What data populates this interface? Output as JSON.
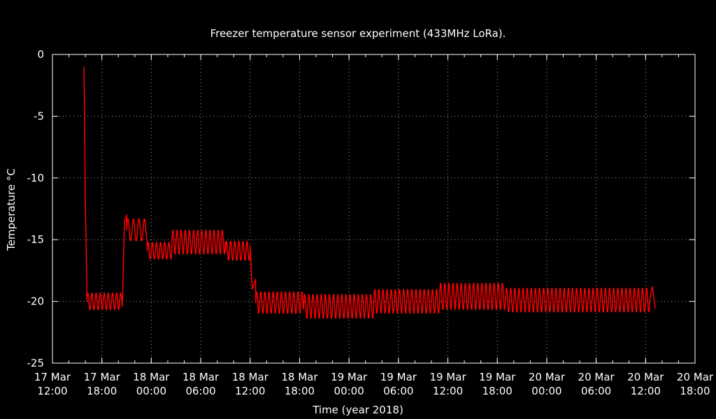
{
  "chart_data": {
    "type": "line",
    "title": "Freezer temperature sensor experiment (433MHz LoRa).",
    "xlabel": "Time (year 2018)",
    "ylabel": "Temperature °C",
    "ylim": [
      -25,
      0
    ],
    "yticks": [
      0,
      -5,
      -10,
      -15,
      -20,
      -25
    ],
    "xlim": [
      "2018-03-17 12:00",
      "2018-03-20 18:00"
    ],
    "xticks": [
      {
        "time": "2018-03-17 12:00",
        "label": [
          "17 Mar",
          "12:00"
        ]
      },
      {
        "time": "2018-03-17 18:00",
        "label": [
          "17 Mar",
          "18:00"
        ]
      },
      {
        "time": "2018-03-18 00:00",
        "label": [
          "18 Mar",
          "00:00"
        ]
      },
      {
        "time": "2018-03-18 06:00",
        "label": [
          "18 Mar",
          "06:00"
        ]
      },
      {
        "time": "2018-03-18 12:00",
        "label": [
          "18 Mar",
          "12:00"
        ]
      },
      {
        "time": "2018-03-18 18:00",
        "label": [
          "18 Mar",
          "18:00"
        ]
      },
      {
        "time": "2018-03-19 00:00",
        "label": [
          "19 Mar",
          "00:00"
        ]
      },
      {
        "time": "2018-03-19 06:00",
        "label": [
          "19 Mar",
          "06:00"
        ]
      },
      {
        "time": "2018-03-19 12:00",
        "label": [
          "19 Mar",
          "12:00"
        ]
      },
      {
        "time": "2018-03-19 18:00",
        "label": [
          "19 Mar",
          "18:00"
        ]
      },
      {
        "time": "2018-03-20 00:00",
        "label": [
          "20 Mar",
          "00:00"
        ]
      },
      {
        "time": "2018-03-20 06:00",
        "label": [
          "20 Mar",
          "06:00"
        ]
      },
      {
        "time": "2018-03-20 12:00",
        "label": [
          "20 Mar",
          "12:00"
        ]
      },
      {
        "time": "2018-03-20 18:00",
        "label": [
          "20 Mar",
          "18:00"
        ]
      }
    ],
    "grid": true,
    "background": "#000000",
    "axis_color": "#ffffff",
    "series": [
      {
        "color": "#ff0000",
        "segments": [
          {
            "start": "2018-03-17 15:50",
            "end": "2018-03-17 16:10",
            "points": [
              [
                0,
                -1.0
              ],
              [
                10,
                -12.0
              ],
              [
                20,
                -18.5
              ]
            ]
          },
          {
            "start": "2018-03-17 16:10",
            "end": "2018-03-17 20:30",
            "center": -20.0,
            "amplitude": 0.7,
            "period_min": 30
          },
          {
            "start": "2018-03-17 20:30",
            "end": "2018-03-17 21:00",
            "points": [
              [
                0,
                -20.0
              ],
              [
                15,
                -13.5
              ],
              [
                30,
                -13.0
              ]
            ]
          },
          {
            "start": "2018-03-17 21:00",
            "end": "2018-03-17 23:30",
            "center": -14.2,
            "amplitude": 0.9,
            "period_min": 40
          },
          {
            "start": "2018-03-17 23:30",
            "end": "2018-03-18 02:30",
            "center": -15.9,
            "amplitude": 0.7,
            "period_min": 30
          },
          {
            "start": "2018-03-18 02:30",
            "end": "2018-03-18 09:00",
            "center": -15.2,
            "amplitude": 1.0,
            "period_min": 30
          },
          {
            "start": "2018-03-18 09:00",
            "end": "2018-03-18 12:00",
            "center": -15.9,
            "amplitude": 0.8,
            "period_min": 30
          },
          {
            "start": "2018-03-18 12:00",
            "end": "2018-03-18 12:40",
            "points": [
              [
                0,
                -15.5
              ],
              [
                15,
                -19.0
              ],
              [
                40,
                -18.2
              ]
            ]
          },
          {
            "start": "2018-03-18 12:40",
            "end": "2018-03-18 18:30",
            "center": -20.1,
            "amplitude": 0.9,
            "period_min": 30
          },
          {
            "start": "2018-03-18 18:30",
            "end": "2018-03-19 03:00",
            "center": -20.4,
            "amplitude": 1.0,
            "period_min": 30
          },
          {
            "start": "2018-03-19 03:00",
            "end": "2018-03-19 11:00",
            "center": -20.0,
            "amplitude": 1.0,
            "period_min": 30
          },
          {
            "start": "2018-03-19 11:00",
            "end": "2018-03-19 19:00",
            "center": -19.6,
            "amplitude": 1.1,
            "period_min": 30
          },
          {
            "start": "2018-03-19 19:00",
            "end": "2018-03-20 12:30",
            "center": -19.9,
            "amplitude": 1.0,
            "period_min": 30
          },
          {
            "start": "2018-03-20 12:30",
            "end": "2018-03-20 13:10",
            "points": [
              [
                0,
                -19.8
              ],
              [
                20,
                -18.8
              ],
              [
                40,
                -20.6
              ]
            ]
          }
        ]
      }
    ]
  }
}
